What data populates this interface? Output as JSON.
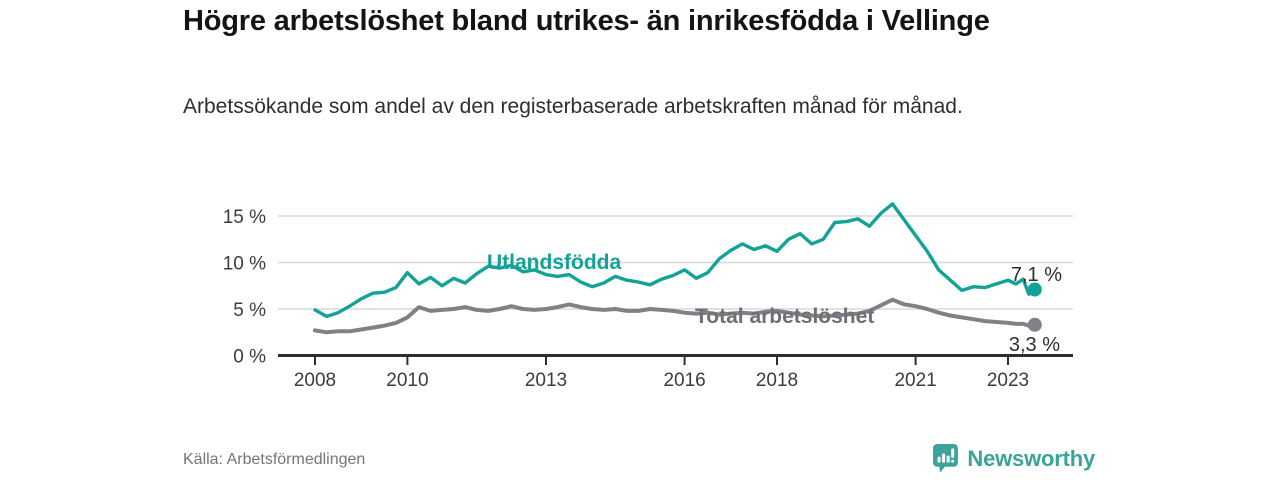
{
  "header": {
    "title": "Högre arbetslöshet bland utrikes- än inrikesfödda i Vellinge",
    "subtitle": "Arbetssökande som andel av den registerbaserade arbetskraften månad för månad."
  },
  "footer": {
    "source": "Källa: Arbetsförmedlingen",
    "brand_name": "Newsworthy"
  },
  "colors": {
    "foreign_line": "#12a296",
    "total_line": "#808086",
    "total_label": "#6f6f75",
    "axis": "#2e2e2e",
    "grid": "#d8d8d8",
    "tick_text": "#3c3c3c",
    "value_text": "#2e2e2e",
    "brand": "#3aa39c"
  },
  "chart_data": {
    "type": "line",
    "unit": "%",
    "x_ticks": [
      2008,
      2010,
      2013,
      2016,
      2018,
      2021,
      2023
    ],
    "y_ticks": [
      0,
      5,
      10,
      15
    ],
    "y_tick_labels": [
      "0 %",
      "5 %",
      "10 %",
      "15 %"
    ],
    "ylim": [
      0,
      17
    ],
    "xlim": [
      2007.2,
      2024.4
    ],
    "grid": "horizontal",
    "x": [
      2008.0,
      2008.25,
      2008.5,
      2008.75,
      2009.0,
      2009.25,
      2009.5,
      2009.75,
      2010.0,
      2010.25,
      2010.5,
      2010.75,
      2011.0,
      2011.25,
      2011.5,
      2011.75,
      2012.0,
      2012.25,
      2012.5,
      2012.75,
      2013.0,
      2013.25,
      2013.5,
      2013.75,
      2014.0,
      2014.25,
      2014.5,
      2014.75,
      2015.0,
      2015.25,
      2015.5,
      2015.75,
      2016.0,
      2016.25,
      2016.5,
      2016.75,
      2017.0,
      2017.25,
      2017.5,
      2017.75,
      2018.0,
      2018.25,
      2018.5,
      2018.75,
      2019.0,
      2019.25,
      2019.5,
      2019.75,
      2020.0,
      2020.25,
      2020.5,
      2020.75,
      2021.0,
      2021.25,
      2021.5,
      2021.75,
      2022.0,
      2022.25,
      2022.5,
      2022.75,
      2023.0,
      2023.17,
      2023.33,
      2023.45,
      2023.58
    ],
    "series": [
      {
        "name": "Utlandsfödda",
        "end_label": "7,1 %",
        "last_value": 7.1,
        "values": [
          4.9,
          4.2,
          4.6,
          5.3,
          6.1,
          6.7,
          6.8,
          7.3,
          8.9,
          7.7,
          8.4,
          7.5,
          8.3,
          7.8,
          8.8,
          9.6,
          9.4,
          9.7,
          9.0,
          9.2,
          8.7,
          8.5,
          8.7,
          7.9,
          7.4,
          7.8,
          8.5,
          8.1,
          7.9,
          7.6,
          8.2,
          8.6,
          9.2,
          8.3,
          8.9,
          10.4,
          11.3,
          12.0,
          11.4,
          11.8,
          11.2,
          12.5,
          13.1,
          12.0,
          12.5,
          14.3,
          14.4,
          14.7,
          13.9,
          15.3,
          16.3,
          14.6,
          12.9,
          11.2,
          9.2,
          8.1,
          7.0,
          7.4,
          7.3,
          7.7,
          8.1,
          7.7,
          8.2,
          6.6,
          7.1
        ]
      },
      {
        "name": "Total arbetslöshet",
        "end_label": "3,3 %",
        "last_value": 3.3,
        "values": [
          2.7,
          2.5,
          2.6,
          2.6,
          2.8,
          3.0,
          3.2,
          3.5,
          4.1,
          5.2,
          4.8,
          4.9,
          5.0,
          5.2,
          4.9,
          4.8,
          5.0,
          5.3,
          5.0,
          4.9,
          5.0,
          5.2,
          5.5,
          5.2,
          5.0,
          4.9,
          5.0,
          4.8,
          4.8,
          5.0,
          4.9,
          4.8,
          4.6,
          4.5,
          4.6,
          4.4,
          4.5,
          4.6,
          4.5,
          4.7,
          4.8,
          4.6,
          4.4,
          4.3,
          4.2,
          4.3,
          4.4,
          4.5,
          4.8,
          5.4,
          6.0,
          5.5,
          5.3,
          5.0,
          4.6,
          4.3,
          4.1,
          3.9,
          3.7,
          3.6,
          3.5,
          3.4,
          3.4,
          3.2,
          3.3
        ]
      }
    ]
  }
}
